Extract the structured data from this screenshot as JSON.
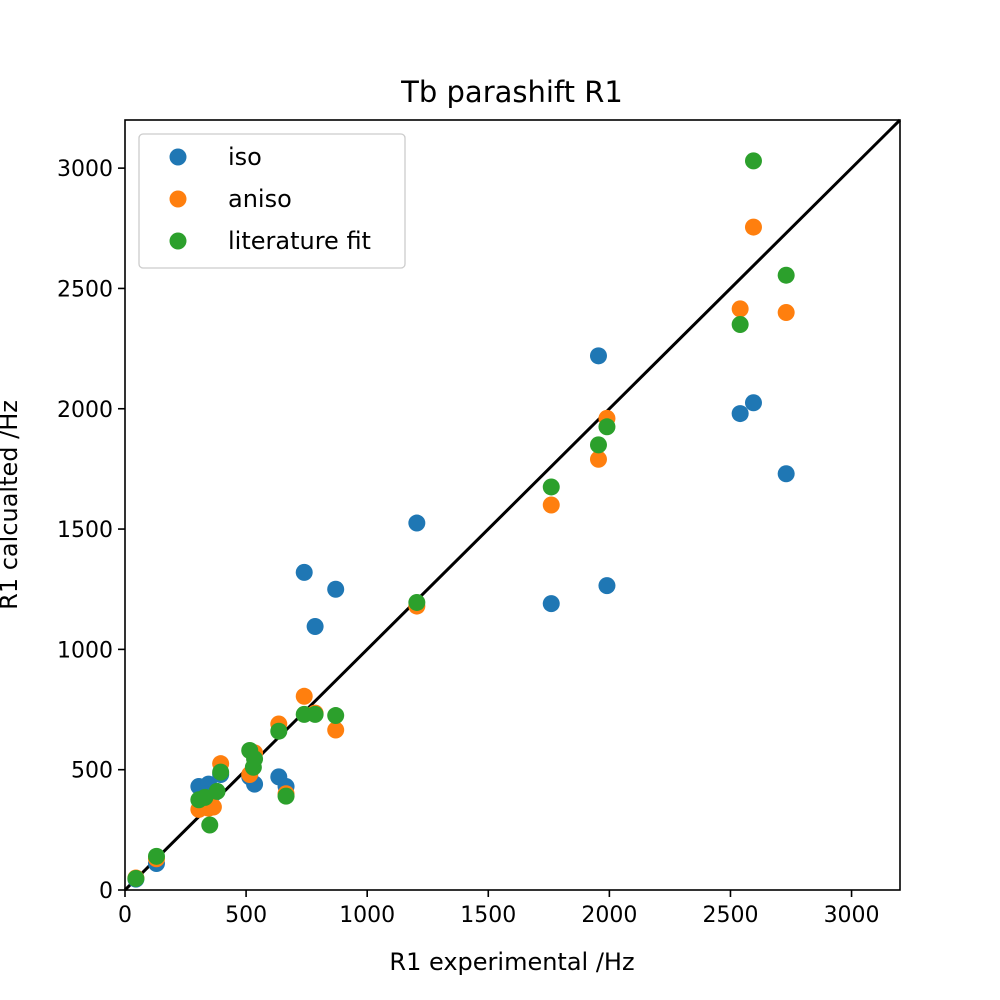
{
  "chart_data": {
    "type": "scatter",
    "title": "Tb parashift R1",
    "xlabel": "R1 experimental /Hz",
    "ylabel": "R1 calcualted /Hz",
    "xlim": [
      0,
      3200
    ],
    "ylim": [
      0,
      3200
    ],
    "xticks": [
      0,
      500,
      1000,
      1500,
      2000,
      2500,
      3000
    ],
    "yticks": [
      0,
      500,
      1000,
      1500,
      2000,
      2500,
      3000
    ],
    "grid": false,
    "legend_position": "upper left",
    "reference_line": {
      "x": [
        0,
        3200
      ],
      "y": [
        0,
        3200
      ],
      "color": "#000000"
    },
    "series": [
      {
        "name": "iso",
        "color": "#1f77b4",
        "points": [
          [
            45,
            45
          ],
          [
            130,
            110
          ],
          [
            305,
            430
          ],
          [
            345,
            440
          ],
          [
            365,
            400
          ],
          [
            395,
            480
          ],
          [
            515,
            470
          ],
          [
            535,
            440
          ],
          [
            635,
            470
          ],
          [
            665,
            430
          ],
          [
            740,
            1320
          ],
          [
            785,
            1095
          ],
          [
            870,
            1250
          ],
          [
            1205,
            1525
          ],
          [
            1760,
            1190
          ],
          [
            1955,
            2220
          ],
          [
            1990,
            1265
          ],
          [
            2540,
            1980
          ],
          [
            2595,
            2025
          ],
          [
            2730,
            1730
          ]
        ]
      },
      {
        "name": "aniso",
        "color": "#ff7f0e",
        "points": [
          [
            45,
            50
          ],
          [
            130,
            130
          ],
          [
            305,
            335
          ],
          [
            345,
            340
          ],
          [
            365,
            345
          ],
          [
            395,
            525
          ],
          [
            515,
            480
          ],
          [
            535,
            570
          ],
          [
            635,
            690
          ],
          [
            665,
            400
          ],
          [
            740,
            805
          ],
          [
            785,
            735
          ],
          [
            870,
            665
          ],
          [
            1205,
            1180
          ],
          [
            1760,
            1600
          ],
          [
            1955,
            1790
          ],
          [
            1990,
            1960
          ],
          [
            2540,
            2415
          ],
          [
            2595,
            2755
          ],
          [
            2730,
            2400
          ]
        ]
      },
      {
        "name": "literature fit",
        "color": "#2ca02c",
        "points": [
          [
            45,
            48
          ],
          [
            130,
            140
          ],
          [
            305,
            375
          ],
          [
            330,
            385
          ],
          [
            350,
            270
          ],
          [
            380,
            410
          ],
          [
            395,
            490
          ],
          [
            515,
            580
          ],
          [
            530,
            510
          ],
          [
            535,
            545
          ],
          [
            635,
            660
          ],
          [
            665,
            390
          ],
          [
            740,
            730
          ],
          [
            785,
            730
          ],
          [
            870,
            725
          ],
          [
            1205,
            1195
          ],
          [
            1760,
            1675
          ],
          [
            1955,
            1850
          ],
          [
            1990,
            1925
          ],
          [
            2540,
            2350
          ],
          [
            2595,
            3030
          ],
          [
            2730,
            2555
          ]
        ]
      }
    ]
  }
}
